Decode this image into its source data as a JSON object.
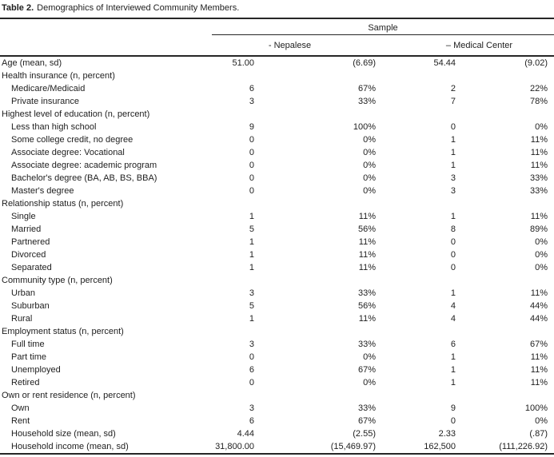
{
  "table_caption": {
    "label": "Table 2.",
    "text": "Demographics of Interviewed Community Members."
  },
  "header": {
    "span_label": "Sample",
    "groups": [
      {
        "label": "- Nepalese"
      },
      {
        "label": "– Medical Center"
      }
    ]
  },
  "colors": {
    "text": "#1e1e1e",
    "rule": "#262626",
    "background": "#ffffff"
  },
  "rows": [
    {
      "label": "Age (mean, sd)",
      "indent": false,
      "values": [
        "51.00",
        "(6.69)",
        "54.44",
        "(9.02)"
      ]
    },
    {
      "label": "Health insurance (n, percent)",
      "indent": false,
      "values": [
        "",
        "",
        "",
        ""
      ]
    },
    {
      "label": "Medicare/Medicaid",
      "indent": true,
      "values": [
        "6",
        "67%",
        "2",
        "22%"
      ]
    },
    {
      "label": "Private insurance",
      "indent": true,
      "values": [
        "3",
        "33%",
        "7",
        "78%"
      ]
    },
    {
      "label": "Highest level of education (n, percent)",
      "indent": false,
      "values": [
        "",
        "",
        "",
        ""
      ]
    },
    {
      "label": "Less than high school",
      "indent": true,
      "values": [
        "9",
        "100%",
        "0",
        "0%"
      ]
    },
    {
      "label": "Some college credit, no degree",
      "indent": true,
      "values": [
        "0",
        "0%",
        "1",
        "11%"
      ]
    },
    {
      "label": "Associate degree: Vocational",
      "indent": true,
      "values": [
        "0",
        "0%",
        "1",
        "11%"
      ]
    },
    {
      "label": "Associate degree: academic program",
      "indent": true,
      "values": [
        "0",
        "0%",
        "1",
        "11%"
      ]
    },
    {
      "label": "Bachelor's degree (BA, AB, BS, BBA)",
      "indent": true,
      "values": [
        "0",
        "0%",
        "3",
        "33%"
      ]
    },
    {
      "label": "Master's degree",
      "indent": true,
      "values": [
        "0",
        "0%",
        "3",
        "33%"
      ]
    },
    {
      "label": "Relationship status (n, percent)",
      "indent": false,
      "values": [
        "",
        "",
        "",
        ""
      ]
    },
    {
      "label": "Single",
      "indent": true,
      "values": [
        "1",
        "11%",
        "1",
        "11%"
      ]
    },
    {
      "label": "Married",
      "indent": true,
      "values": [
        "5",
        "56%",
        "8",
        "89%"
      ]
    },
    {
      "label": "Partnered",
      "indent": true,
      "values": [
        "1",
        "11%",
        "0",
        "0%"
      ]
    },
    {
      "label": "Divorced",
      "indent": true,
      "values": [
        "1",
        "11%",
        "0",
        "0%"
      ]
    },
    {
      "label": "Separated",
      "indent": true,
      "values": [
        "1",
        "11%",
        "0",
        "0%"
      ]
    },
    {
      "label": "Community type (n, percent)",
      "indent": false,
      "values": [
        "",
        "",
        "",
        ""
      ]
    },
    {
      "label": "Urban",
      "indent": true,
      "values": [
        "3",
        "33%",
        "1",
        "11%"
      ]
    },
    {
      "label": "Suburban",
      "indent": true,
      "values": [
        "5",
        "56%",
        "4",
        "44%"
      ]
    },
    {
      "label": "Rural",
      "indent": true,
      "values": [
        "1",
        "11%",
        "4",
        "44%"
      ]
    },
    {
      "label": "Employment status (n, percent)",
      "indent": false,
      "values": [
        "",
        "",
        "",
        ""
      ]
    },
    {
      "label": "Full time",
      "indent": true,
      "values": [
        "3",
        "33%",
        "6",
        "67%"
      ]
    },
    {
      "label": "Part time",
      "indent": true,
      "values": [
        "0",
        "0%",
        "1",
        "11%"
      ]
    },
    {
      "label": "Unemployed",
      "indent": true,
      "values": [
        "6",
        "67%",
        "1",
        "11%"
      ]
    },
    {
      "label": "Retired",
      "indent": true,
      "values": [
        "0",
        "0%",
        "1",
        "11%"
      ]
    },
    {
      "label": "Own or rent residence (n, percent)",
      "indent": false,
      "values": [
        "",
        "",
        "",
        ""
      ]
    },
    {
      "label": "Own",
      "indent": true,
      "values": [
        "3",
        "33%",
        "9",
        "100%"
      ]
    },
    {
      "label": "Rent",
      "indent": true,
      "values": [
        "6",
        "67%",
        "0",
        "0%"
      ]
    },
    {
      "label": "Household size (mean, sd)",
      "indent": true,
      "values": [
        "4.44",
        "(2.55)",
        "2.33",
        "(.87)"
      ]
    },
    {
      "label": "Household income (mean, sd)",
      "indent": true,
      "values": [
        "31,800.00",
        "(15,469.97)",
        "162,500",
        "(111,226.92)"
      ]
    }
  ]
}
